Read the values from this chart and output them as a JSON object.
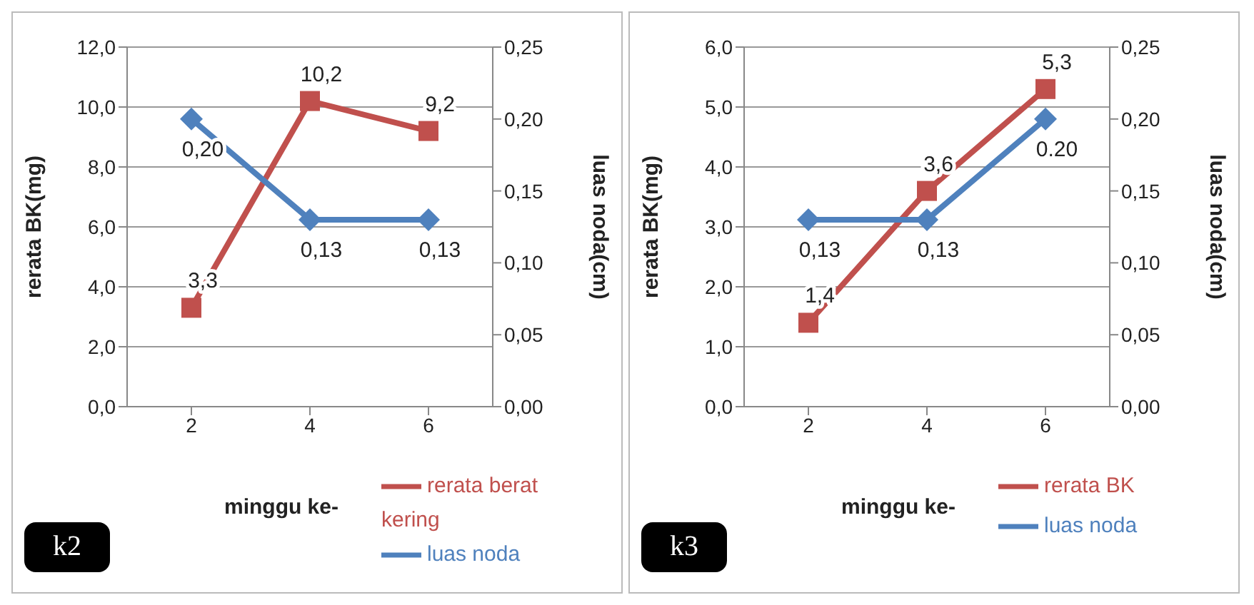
{
  "chart_data": [
    {
      "type": "line",
      "categories": [
        "2",
        "4",
        "6"
      ],
      "xlabel": "minggu ke-",
      "ylabel": "rerata BK(mg)",
      "y2label": "luas noda(cm)",
      "series": [
        {
          "name": "rerata berat kering",
          "color": "#c0504d",
          "marker": "square",
          "values": [
            3.3,
            10.2,
            9.2
          ],
          "value_labels": [
            "3,3",
            "10,2",
            "9,2"
          ]
        },
        {
          "name": "luas noda",
          "color": "#4f81bd",
          "marker": "diamond",
          "axis": "y2",
          "values": [
            0.2,
            0.13,
            0.13
          ],
          "value_labels": [
            "0,20",
            "0,13",
            "0,13"
          ]
        }
      ],
      "ylim": [
        0,
        12
      ],
      "yticks": [
        {
          "value": 0,
          "label": "0,0"
        },
        {
          "value": 2,
          "label": "2,0"
        },
        {
          "value": 4,
          "label": "4,0"
        },
        {
          "value": 6,
          "label": "6,0"
        },
        {
          "value": 8,
          "label": "8,0"
        },
        {
          "value": 10,
          "label": "10,0"
        },
        {
          "value": 12,
          "label": "12,0"
        }
      ],
      "y2lim": [
        0,
        0.25
      ],
      "y2ticks": [
        {
          "value": 0,
          "label": "0,00"
        },
        {
          "value": 0.05,
          "label": "0,05"
        },
        {
          "value": 0.1,
          "label": "0,10"
        },
        {
          "value": 0.15,
          "label": "0,15"
        },
        {
          "value": 0.2,
          "label": "0,20"
        },
        {
          "value": 0.25,
          "label": "0,25"
        }
      ],
      "grid": "y",
      "legend": "bottom right",
      "line_style": "solid",
      "annotations": [
        "k2"
      ]
    },
    {
      "type": "line",
      "categories": [
        "2",
        "4",
        "6"
      ],
      "xlabel": "minggu ke-",
      "ylabel": "rerata BK(mg)",
      "y2label": "luas noda(cm)",
      "series": [
        {
          "name": "rerata BK",
          "color": "#c0504d",
          "marker": "square",
          "values": [
            1.4,
            3.6,
            5.3
          ],
          "value_labels": [
            "1,4",
            "3,6",
            "5,3"
          ]
        },
        {
          "name": "luas noda",
          "color": "#4f81bd",
          "marker": "diamond",
          "axis": "y2",
          "values": [
            0.13,
            0.13,
            0.2
          ],
          "value_labels": [
            "0,13",
            "0,13",
            "0.20"
          ]
        }
      ],
      "ylim": [
        0,
        6
      ],
      "yticks": [
        {
          "value": 0,
          "label": "0,0"
        },
        {
          "value": 1,
          "label": "1,0"
        },
        {
          "value": 2,
          "label": "2,0"
        },
        {
          "value": 3,
          "label": "3,0"
        },
        {
          "value": 4,
          "label": "4,0"
        },
        {
          "value": 5,
          "label": "5,0"
        },
        {
          "value": 6,
          "label": "6,0"
        }
      ],
      "y2lim": [
        0,
        0.25
      ],
      "y2ticks": [
        {
          "value": 0,
          "label": "0,00"
        },
        {
          "value": 0.05,
          "label": "0,05"
        },
        {
          "value": 0.1,
          "label": "0,10"
        },
        {
          "value": 0.15,
          "label": "0,15"
        },
        {
          "value": 0.2,
          "label": "0,20"
        },
        {
          "value": 0.25,
          "label": "0,25"
        }
      ],
      "grid": "y",
      "legend": "bottom right",
      "line_style": "solid",
      "annotations": [
        "k3"
      ]
    }
  ]
}
